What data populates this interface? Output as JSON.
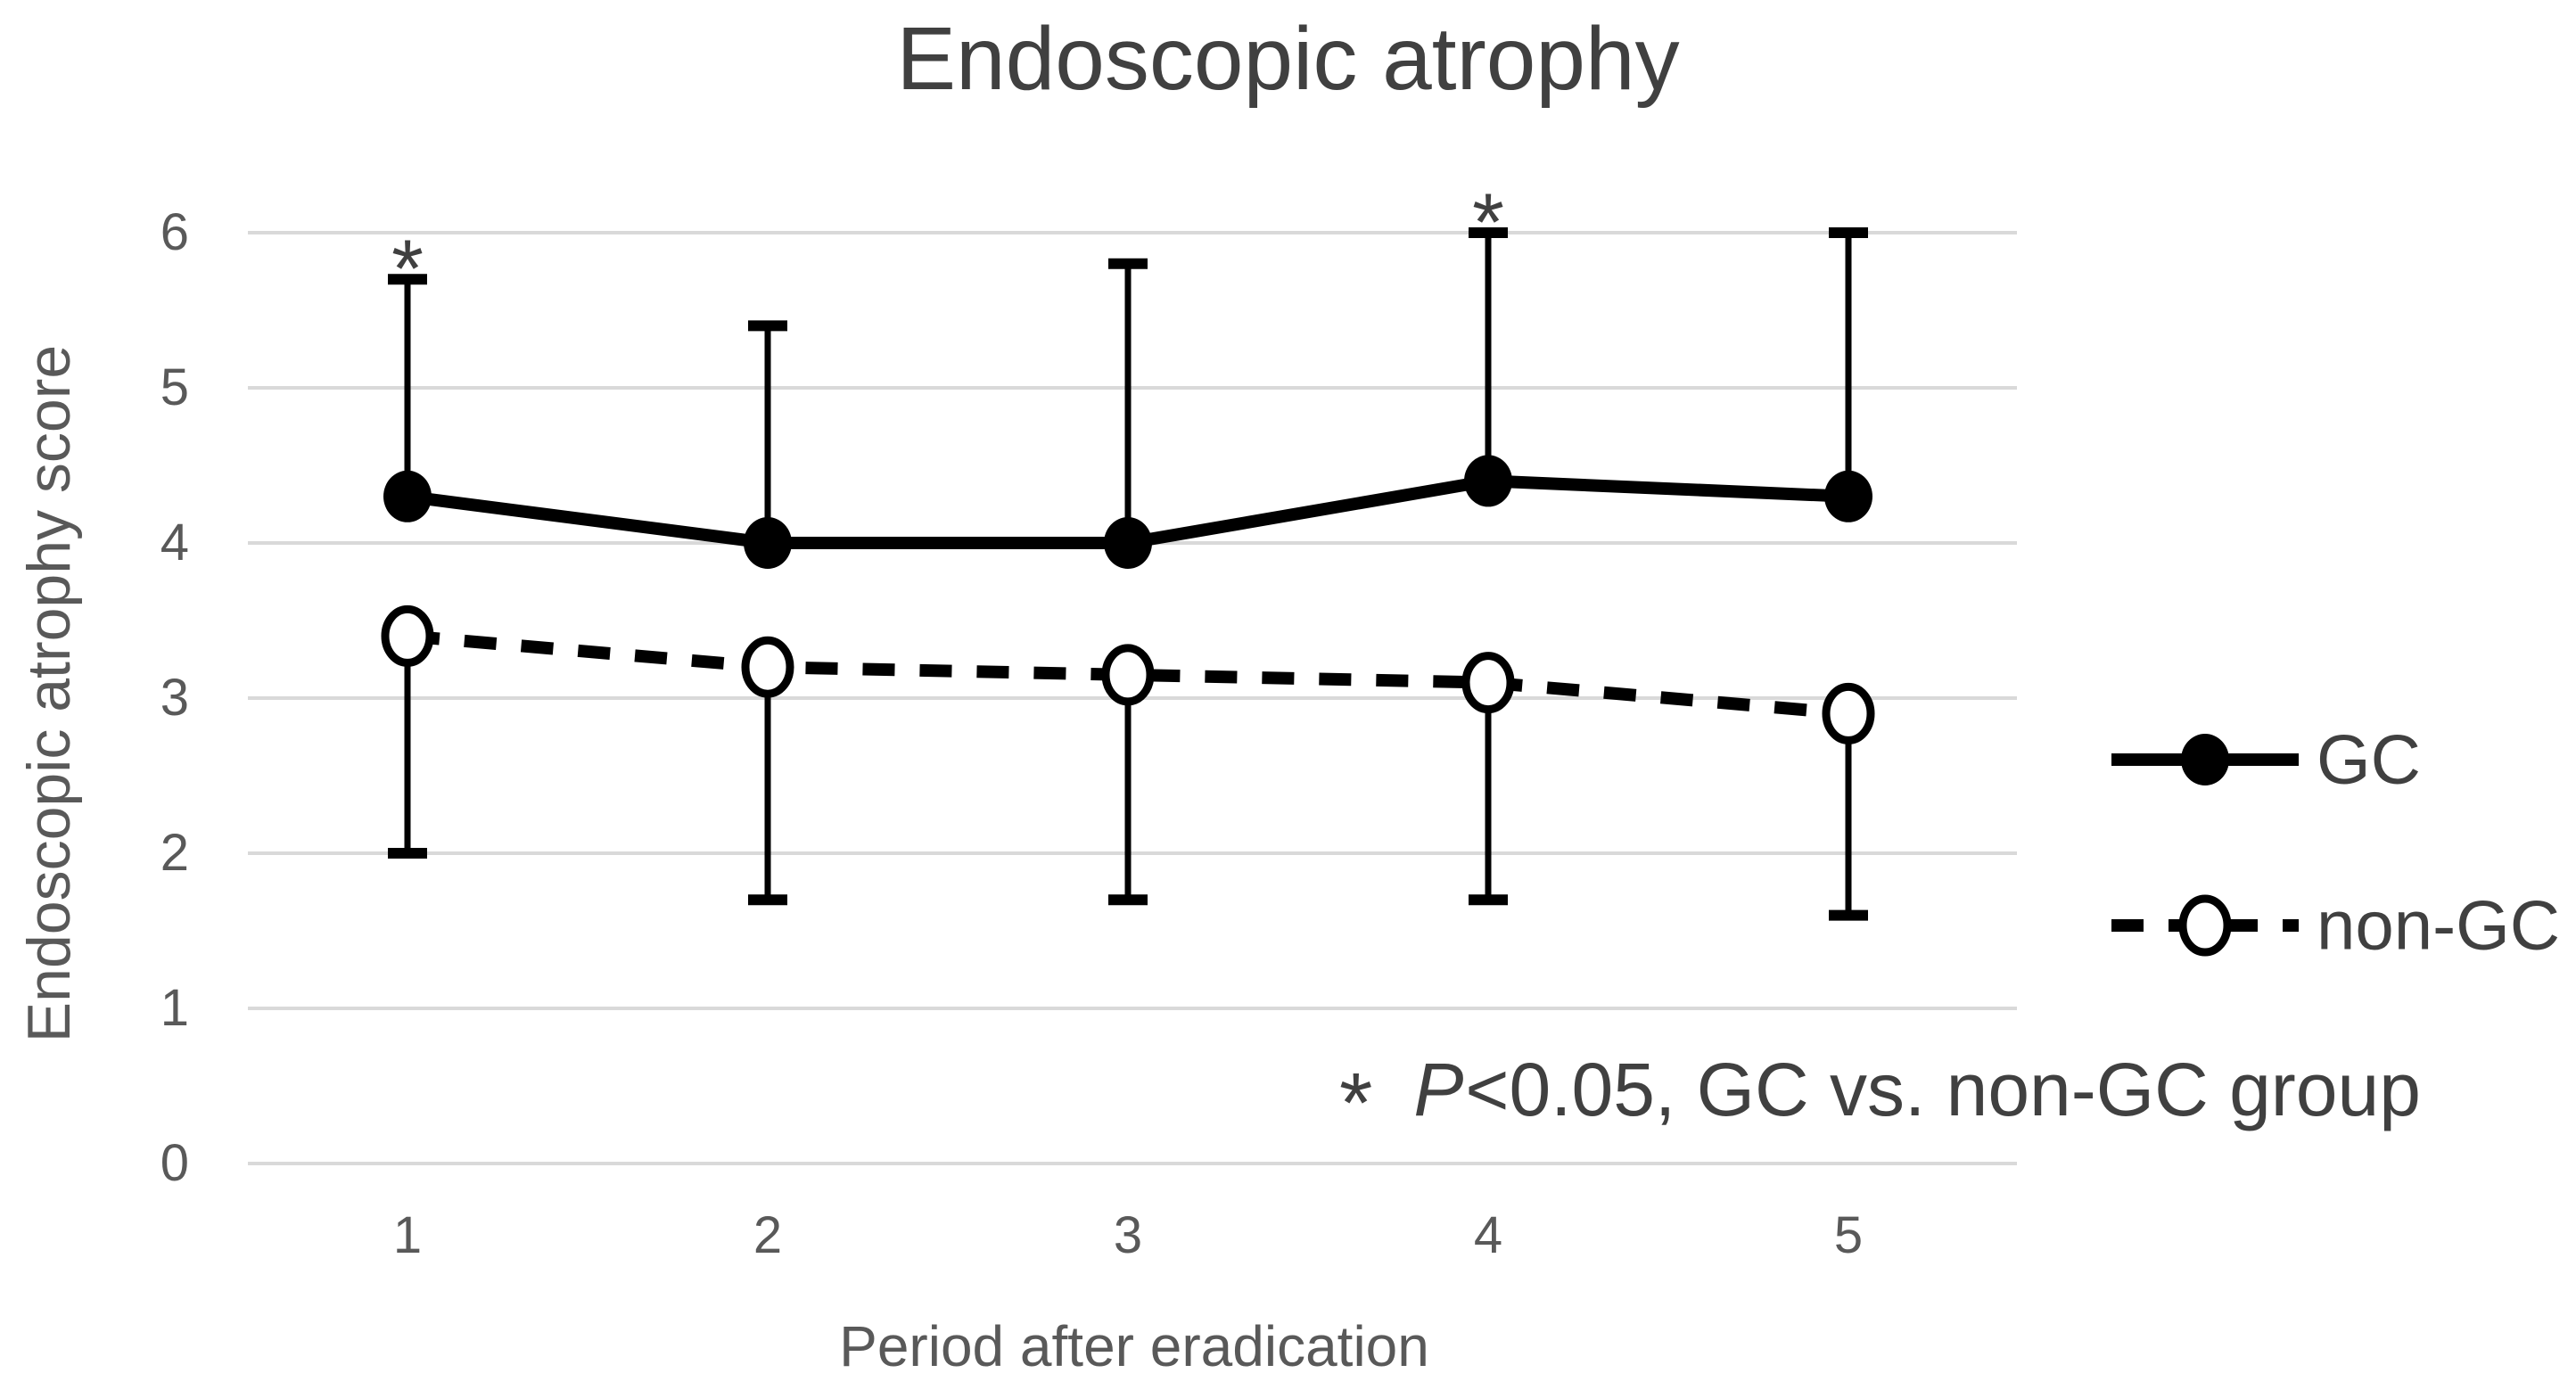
{
  "title": "Endoscopic atrophy",
  "y_axis": {
    "title": "Endoscopic atrophy score",
    "ticks": [
      "0",
      "1",
      "2",
      "3",
      "4",
      "5",
      "6"
    ]
  },
  "x_axis": {
    "title": "Period after eradication",
    "ticks": [
      "1",
      "2",
      "3",
      "4",
      "5"
    ]
  },
  "legend": {
    "items": [
      {
        "label": "GC",
        "line_style": "solid",
        "marker": "filled-circle"
      },
      {
        "label": "non-GC",
        "line_style": "dashed",
        "marker": "open-circle"
      }
    ]
  },
  "annotation": {
    "marker": "*",
    "p": "P",
    "rest": "<0.05, GC vs. non-GC group"
  },
  "colors": {
    "series": "#000000",
    "gridline": "#d9d9d9",
    "tick_text": "#595959",
    "title_text": "#404040",
    "marker_open_fill": "#ffffff"
  },
  "chart_data": {
    "type": "line",
    "title": "Endoscopic atrophy",
    "xlabel": "Period after eradication",
    "ylabel": "Endoscopic atrophy score",
    "categories": [
      "1",
      "2",
      "3",
      "4",
      "5"
    ],
    "ylim": [
      0,
      6
    ],
    "y_ticks": [
      0,
      1,
      2,
      3,
      4,
      5,
      6
    ],
    "grid": "horizontal",
    "legend_position": "right",
    "series": [
      {
        "name": "GC",
        "line_style": "solid",
        "marker": "filled-circle",
        "values": [
          4.3,
          4.0,
          4.0,
          4.4,
          4.3
        ],
        "error_bar_direction": "up",
        "error_bar_top": [
          5.7,
          5.4,
          5.8,
          6.0,
          6.0
        ]
      },
      {
        "name": "non-GC",
        "line_style": "dashed",
        "marker": "open-circle",
        "values": [
          3.4,
          3.2,
          3.15,
          3.1,
          2.9
        ],
        "error_bar_direction": "down",
        "error_bar_bottom": [
          2.0,
          1.7,
          1.7,
          1.7,
          1.6
        ]
      }
    ],
    "significance": {
      "glyph": "*",
      "categories": [
        "1",
        "4"
      ],
      "note": "P<0.05, GC vs. non-GC group"
    }
  }
}
